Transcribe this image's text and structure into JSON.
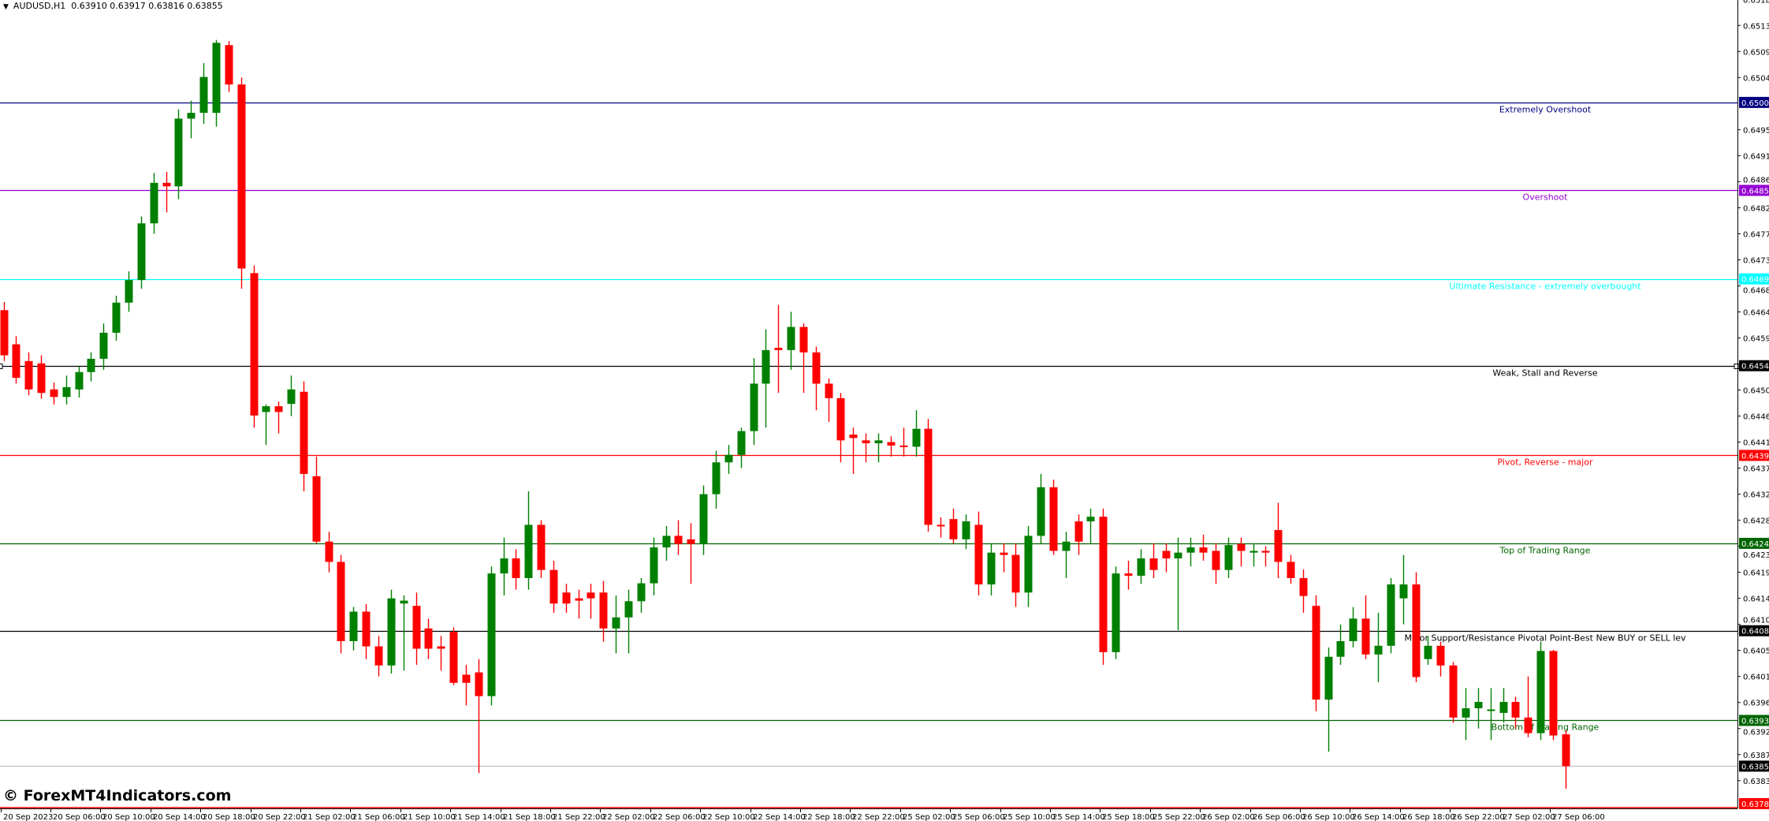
{
  "header": {
    "symbol": "AUDUSD,H1",
    "ohlc": "0.63910 0.63917 0.63816 0.63855"
  },
  "watermark": "© ForexMT4Indicators.com",
  "colors": {
    "bull": "#008000",
    "bear": "#ff0000",
    "background": "#ffffff",
    "axis": "#000000"
  },
  "chart_data": {
    "type": "candlestick",
    "title": "",
    "ylim": [
      0.63782,
      0.65179
    ],
    "grid": false,
    "y_ticks": [
      "0.65180",
      "0.65135",
      "0.65090",
      "0.65045",
      "0.64955",
      "0.64910",
      "0.64865",
      "0.64820",
      "0.64775",
      "0.64730",
      "0.64685",
      "0.64640",
      "0.64595",
      "0.64505",
      "0.64460",
      "0.64415",
      "0.64370",
      "0.64325",
      "0.64280",
      "0.64235",
      "0.64190",
      "0.64145",
      "0.64100",
      "0.64055",
      "0.64010",
      "0.63965",
      "0.63920",
      "0.63875",
      "0.63830"
    ],
    "x_labels": [
      "20 Sep 2023",
      "20 Sep 06:00",
      "20 Sep 10:00",
      "20 Sep 14:00",
      "20 Sep 18:00",
      "20 Sep 22:00",
      "21 Sep 02:00",
      "21 Sep 06:00",
      "21 Sep 10:00",
      "21 Sep 14:00",
      "21 Sep 18:00",
      "21 Sep 22:00",
      "22 Sep 02:00",
      "22 Sep 06:00",
      "22 Sep 10:00",
      "22 Sep 14:00",
      "22 Sep 18:00",
      "22 Sep 22:00",
      "25 Sep 02:00",
      "25 Sep 06:00",
      "25 Sep 10:00",
      "25 Sep 14:00",
      "25 Sep 18:00",
      "25 Sep 22:00",
      "26 Sep 02:00",
      "26 Sep 06:00",
      "26 Sep 10:00",
      "26 Sep 14:00",
      "26 Sep 18:00",
      "26 Sep 22:00",
      "27 Sep 02:00",
      "27 Sep 06:00"
    ],
    "ohlc": [
      [
        0.64643,
        0.64657,
        0.64555,
        0.64565
      ],
      [
        0.64584,
        0.64598,
        0.64516,
        0.64526
      ],
      [
        0.64555,
        0.6457,
        0.64496,
        0.64506
      ],
      [
        0.64551,
        0.64565,
        0.6449,
        0.645
      ],
      [
        0.64506,
        0.64518,
        0.6448,
        0.64493
      ],
      [
        0.64493,
        0.6453,
        0.6448,
        0.6451
      ],
      [
        0.64506,
        0.64545,
        0.64492,
        0.64536
      ],
      [
        0.64536,
        0.6457,
        0.6452,
        0.64559
      ],
      [
        0.64559,
        0.6462,
        0.6454,
        0.64604
      ],
      [
        0.64604,
        0.64668,
        0.6459,
        0.64656
      ],
      [
        0.64656,
        0.6471,
        0.6464,
        0.64695
      ],
      [
        0.64695,
        0.64805,
        0.6468,
        0.64793
      ],
      [
        0.64793,
        0.6488,
        0.64775,
        0.64863
      ],
      [
        0.64863,
        0.64882,
        0.64812,
        0.64857
      ],
      [
        0.64857,
        0.6499,
        0.64835,
        0.64974
      ],
      [
        0.64974,
        0.65005,
        0.6494,
        0.64984
      ],
      [
        0.64984,
        0.6507,
        0.64965,
        0.65046
      ],
      [
        0.64984,
        0.6511,
        0.6496,
        0.65105
      ],
      [
        0.65101,
        0.65108,
        0.6502,
        0.65033
      ],
      [
        0.65033,
        0.65045,
        0.6468,
        0.64715
      ],
      [
        0.64707,
        0.6472,
        0.6444,
        0.64461
      ],
      [
        0.64467,
        0.6448,
        0.6441,
        0.64477
      ],
      [
        0.64477,
        0.64485,
        0.6443,
        0.64467
      ],
      [
        0.64481,
        0.6453,
        0.6446,
        0.64506
      ],
      [
        0.64502,
        0.6452,
        0.6433,
        0.6436
      ],
      [
        0.64356,
        0.6439,
        0.6424,
        0.64243
      ],
      [
        0.64243,
        0.6426,
        0.6419,
        0.64208
      ],
      [
        0.64208,
        0.6422,
        0.6405,
        0.64071
      ],
      [
        0.64071,
        0.6413,
        0.64055,
        0.64122
      ],
      [
        0.64122,
        0.64135,
        0.6404,
        0.64062
      ],
      [
        0.64062,
        0.6408,
        0.6401,
        0.64029
      ],
      [
        0.64029,
        0.6416,
        0.64015,
        0.64145
      ],
      [
        0.64136,
        0.6415,
        0.6402,
        0.64141
      ],
      [
        0.64132,
        0.64155,
        0.6403,
        0.64058
      ],
      [
        0.64093,
        0.6411,
        0.6404,
        0.64058
      ],
      [
        0.64062,
        0.6408,
        0.6402,
        0.64058
      ],
      [
        0.64087,
        0.64095,
        0.63995,
        0.63999
      ],
      [
        0.64013,
        0.6403,
        0.6396,
        0.63999
      ],
      [
        0.64017,
        0.6404,
        0.63843,
        0.63976
      ],
      [
        0.63976,
        0.642,
        0.6396,
        0.64188
      ],
      [
        0.64188,
        0.6425,
        0.6415,
        0.64214
      ],
      [
        0.64214,
        0.6423,
        0.6416,
        0.6418
      ],
      [
        0.6418,
        0.6433,
        0.6416,
        0.64272
      ],
      [
        0.64272,
        0.6428,
        0.6418,
        0.64194
      ],
      [
        0.64194,
        0.6421,
        0.6412,
        0.64136
      ],
      [
        0.64155,
        0.6417,
        0.6412,
        0.64136
      ],
      [
        0.64145,
        0.6416,
        0.6411,
        0.64141
      ],
      [
        0.64155,
        0.6417,
        0.6411,
        0.64145
      ],
      [
        0.64155,
        0.64175,
        0.6407,
        0.64093
      ],
      [
        0.64093,
        0.6415,
        0.6405,
        0.64112
      ],
      [
        0.64112,
        0.6416,
        0.6405,
        0.6414
      ],
      [
        0.6414,
        0.6418,
        0.6412,
        0.64171
      ],
      [
        0.64171,
        0.6425,
        0.6415,
        0.64233
      ],
      [
        0.64233,
        0.6427,
        0.6421,
        0.64253
      ],
      [
        0.64253,
        0.6428,
        0.6422,
        0.64239
      ],
      [
        0.64247,
        0.64275,
        0.6417,
        0.64239
      ],
      [
        0.64239,
        0.6434,
        0.6422,
        0.64325
      ],
      [
        0.64325,
        0.644,
        0.643,
        0.6438
      ],
      [
        0.6438,
        0.6441,
        0.6436,
        0.64393
      ],
      [
        0.64393,
        0.6444,
        0.6437,
        0.64434
      ],
      [
        0.64434,
        0.6456,
        0.6441,
        0.64516
      ],
      [
        0.64516,
        0.6461,
        0.6444,
        0.64574
      ],
      [
        0.64578,
        0.64652,
        0.645,
        0.64574
      ],
      [
        0.64574,
        0.6464,
        0.6454,
        0.64614
      ],
      [
        0.64614,
        0.6462,
        0.645,
        0.6457
      ],
      [
        0.6457,
        0.6458,
        0.6447,
        0.64516
      ],
      [
        0.64516,
        0.64525,
        0.6445,
        0.64491
      ],
      [
        0.64491,
        0.645,
        0.6438,
        0.64418
      ],
      [
        0.64428,
        0.6444,
        0.6436,
        0.64422
      ],
      [
        0.64418,
        0.6443,
        0.6438,
        0.64413
      ],
      [
        0.64413,
        0.6443,
        0.6438,
        0.64418
      ],
      [
        0.64415,
        0.64425,
        0.6439,
        0.64409
      ],
      [
        0.64409,
        0.6444,
        0.6439,
        0.64407
      ],
      [
        0.64407,
        0.6447,
        0.6439,
        0.64438
      ],
      [
        0.64438,
        0.64455,
        0.6426,
        0.64272
      ],
      [
        0.64272,
        0.64285,
        0.6425,
        0.6427
      ],
      [
        0.64282,
        0.643,
        0.6424,
        0.64247
      ],
      [
        0.64247,
        0.6429,
        0.6423,
        0.64278
      ],
      [
        0.64272,
        0.64295,
        0.6415,
        0.64169
      ],
      [
        0.64169,
        0.6424,
        0.6415,
        0.64224
      ],
      [
        0.64224,
        0.6424,
        0.6419,
        0.6422
      ],
      [
        0.6422,
        0.6424,
        0.6413,
        0.64155
      ],
      [
        0.64155,
        0.6427,
        0.6413,
        0.64253
      ],
      [
        0.64253,
        0.6436,
        0.6424,
        0.64337
      ],
      [
        0.64337,
        0.6435,
        0.6422,
        0.64227
      ],
      [
        0.64227,
        0.6426,
        0.6418,
        0.64243
      ],
      [
        0.64278,
        0.6429,
        0.6422,
        0.64243
      ],
      [
        0.64278,
        0.643,
        0.6424,
        0.64286
      ],
      [
        0.64286,
        0.643,
        0.6403,
        0.64052
      ],
      [
        0.64052,
        0.642,
        0.6404,
        0.64188
      ],
      [
        0.64188,
        0.6421,
        0.6416,
        0.64184
      ],
      [
        0.64184,
        0.6423,
        0.6417,
        0.64214
      ],
      [
        0.64214,
        0.6424,
        0.6418,
        0.64194
      ],
      [
        0.64227,
        0.6424,
        0.6419,
        0.64214
      ],
      [
        0.64214,
        0.6425,
        0.6409,
        0.64224
      ],
      [
        0.64224,
        0.6425,
        0.642,
        0.64233
      ],
      [
        0.64233,
        0.64255,
        0.6421,
        0.64224
      ],
      [
        0.64227,
        0.6424,
        0.6417,
        0.64194
      ],
      [
        0.64194,
        0.6425,
        0.6418,
        0.64237
      ],
      [
        0.64239,
        0.6425,
        0.642,
        0.64227
      ],
      [
        0.64224,
        0.6424,
        0.642,
        0.64227
      ],
      [
        0.64227,
        0.64235,
        0.642,
        0.64224
      ],
      [
        0.64263,
        0.6431,
        0.6418,
        0.64208
      ],
      [
        0.64208,
        0.6422,
        0.6417,
        0.6418
      ],
      [
        0.6418,
        0.64195,
        0.6412,
        0.64149
      ],
      [
        0.64132,
        0.6415,
        0.6395,
        0.6397
      ],
      [
        0.6397,
        0.6406,
        0.6388,
        0.64044
      ],
      [
        0.64044,
        0.641,
        0.6403,
        0.64071
      ],
      [
        0.64071,
        0.6413,
        0.6406,
        0.6411
      ],
      [
        0.6411,
        0.6415,
        0.6404,
        0.64048
      ],
      [
        0.64048,
        0.6412,
        0.64,
        0.64063
      ],
      [
        0.64063,
        0.6418,
        0.6405,
        0.64169
      ],
      [
        0.64145,
        0.6422,
        0.641,
        0.64169
      ],
      [
        0.64169,
        0.6419,
        0.64,
        0.64009
      ],
      [
        0.6404,
        0.6408,
        0.6403,
        0.64063
      ],
      [
        0.64063,
        0.6407,
        0.6401,
        0.64029
      ],
      [
        0.64029,
        0.64035,
        0.6393,
        0.63939
      ],
      [
        0.63939,
        0.6399,
        0.639,
        0.63955
      ],
      [
        0.63955,
        0.6399,
        0.6392,
        0.63966
      ],
      [
        0.63951,
        0.6399,
        0.639,
        0.63953
      ],
      [
        0.63947,
        0.6399,
        0.6393,
        0.63966
      ],
      [
        0.63966,
        0.63975,
        0.6392,
        0.63939
      ],
      [
        0.63939,
        0.6401,
        0.63905,
        0.63912
      ],
      [
        0.63912,
        0.6407,
        0.639,
        0.64054
      ],
      [
        0.64054,
        0.64056,
        0.639,
        0.63908
      ],
      [
        0.6391,
        0.63917,
        0.63816,
        0.63855
      ]
    ],
    "levels": [
      {
        "price": 0.65002,
        "price_label": "0.65002",
        "text": "Extremely Overshoot",
        "color": "#000080",
        "label_text_color": "#ffffff"
      },
      {
        "price": 0.6485,
        "price_label": "0.64850",
        "text": "Overshoot",
        "color": "#9400d3",
        "label_text_color": "#ffffff"
      },
      {
        "price": 0.64697,
        "price_label": "0.64697",
        "text": "Ultimate Resistance - extremely overbought",
        "color": "#00ffff",
        "label_text_color": "#ffffff"
      },
      {
        "price": 0.64547,
        "price_label": "0.64547",
        "text": "Weak, Stall and Reverse",
        "color": "#000000",
        "label_text_color": "#ffffff"
      },
      {
        "price": 0.64392,
        "price_label": "0.64392",
        "text": "Pivot, Reverse - major",
        "color": "#ff0000",
        "label_text_color": "#ffffff"
      },
      {
        "price": 0.6424,
        "price_label": "0.64240",
        "text": "Top of Trading Range",
        "color": "#006400",
        "label_text_color": "#ffffff"
      },
      {
        "price": 0.64089,
        "price_label": "0.64089",
        "text": "Major Support/Resistance Pivotal Point-Best New BUY or SELL lev",
        "color": "#000000",
        "label_text_color": "#ffffff"
      },
      {
        "price": 0.63934,
        "price_label": "0.63934",
        "text": "Bottom of Trading Range",
        "color": "#006400",
        "label_text_color": "#ffffff"
      }
    ],
    "bid_line": {
      "price": 0.63855,
      "price_label": "0.63855",
      "color": "#c0c0c0",
      "label_bg": "#000000"
    },
    "ask_line": {
      "price": 0.63782,
      "price_label": "0.63782",
      "color": "#ff0000",
      "label_bg": "#ff0000"
    }
  }
}
